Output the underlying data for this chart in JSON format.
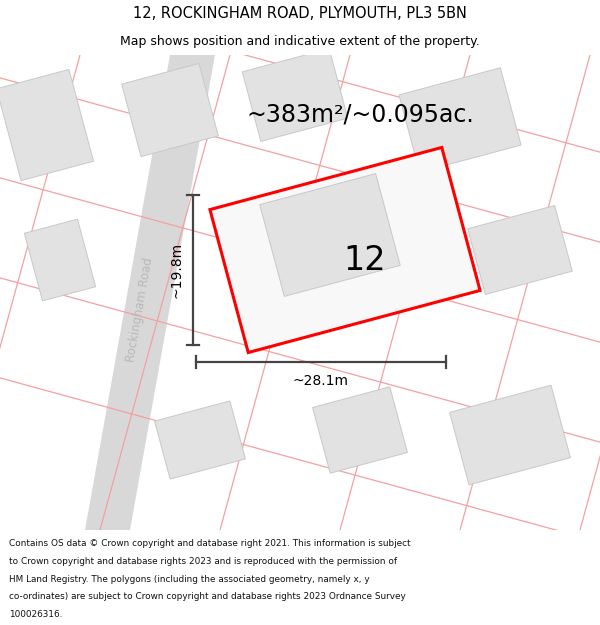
{
  "title_line1": "12, ROCKINGHAM ROAD, PLYMOUTH, PL3 5BN",
  "title_line2": "Map shows position and indicative extent of the property.",
  "area_label": "~383m²/~0.095ac.",
  "number_label": "12",
  "dim_width": "~28.1m",
  "dim_height": "~19.8m",
  "road_label": "Rockingham Road",
  "footer_lines": [
    "Contains OS data © Crown copyright and database right 2021. This information is subject",
    "to Crown copyright and database rights 2023 and is reproduced with the permission of",
    "HM Land Registry. The polygons (including the associated geometry, namely x, y",
    "co-ordinates) are subject to Crown copyright and database rights 2023 Ordnance Survey",
    "100026316."
  ],
  "bg_color": "#ffffff",
  "map_bg": "#ffffff",
  "building_fill": "#e2e2e2",
  "building_edge": "#c8c8c8",
  "highlight_edge": "#ff0000",
  "dim_line_color": "#444444",
  "red_line_color": "#f4a0a0",
  "road_fill": "#d8d8d8",
  "road_label_color": "#b8b8b8",
  "footer_bg": "#f0f0f0",
  "title_bg": "#ffffff"
}
